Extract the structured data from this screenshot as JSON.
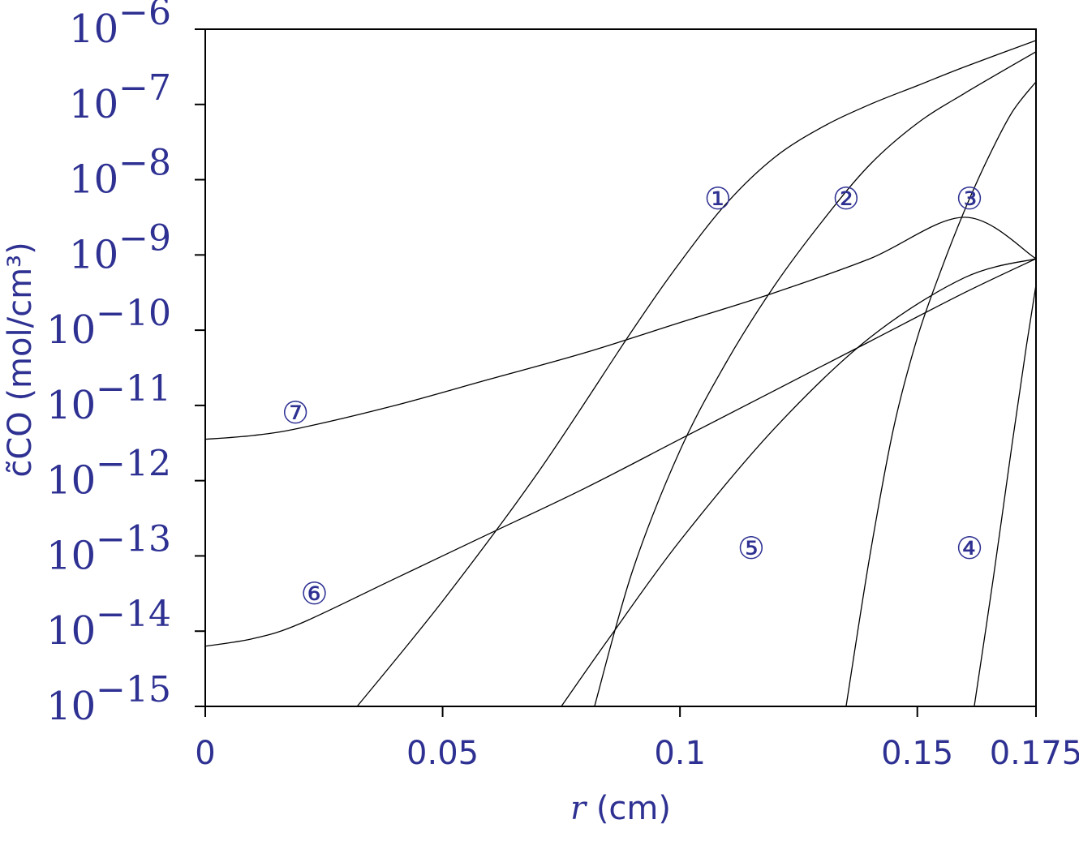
{
  "chart_data": {
    "type": "line",
    "title": "",
    "xlabel_var": "r",
    "xlabel_unit": "(cm)",
    "ylabel": "c̃CO (mol/cm³)",
    "x_scale": "linear",
    "y_scale": "log",
    "xlim": [
      0,
      0.175
    ],
    "ylim": [
      1e-15,
      1e-06
    ],
    "grid": false,
    "legend": "none",
    "x_ticks": [
      {
        "value": 0,
        "label": "0"
      },
      {
        "value": 0.05,
        "label": "0.05"
      },
      {
        "value": 0.1,
        "label": "0.1"
      },
      {
        "value": 0.15,
        "label": "0.15"
      },
      {
        "value": 0.175,
        "label": "0.175"
      }
    ],
    "y_ticks": [
      {
        "exp": -15,
        "base": "10",
        "sup": "−15"
      },
      {
        "exp": -14,
        "base": "10",
        "sup": "−14"
      },
      {
        "exp": -13,
        "base": "10",
        "sup": "−13"
      },
      {
        "exp": -12,
        "base": "10",
        "sup": "−12"
      },
      {
        "exp": -11,
        "base": "10",
        "sup": "−11"
      },
      {
        "exp": -10,
        "base": "10",
        "sup": "−10"
      },
      {
        "exp": -9,
        "base": "10",
        "sup": "−9"
      },
      {
        "exp": -8,
        "base": "10",
        "sup": "−8"
      },
      {
        "exp": -7,
        "base": "10",
        "sup": "−7"
      },
      {
        "exp": -6,
        "base": "10",
        "sup": "−6"
      }
    ],
    "series": [
      {
        "label": "①",
        "label_at": [
          0.108,
          -8.25
        ],
        "points": [
          [
            0.032,
            -15
          ],
          [
            0.05,
            -13.6
          ],
          [
            0.07,
            -11.9
          ],
          [
            0.09,
            -10.0
          ],
          [
            0.1,
            -9.1
          ],
          [
            0.11,
            -8.3
          ],
          [
            0.12,
            -7.7
          ],
          [
            0.13,
            -7.3
          ],
          [
            0.14,
            -7.0
          ],
          [
            0.15,
            -6.75
          ],
          [
            0.16,
            -6.5
          ],
          [
            0.175,
            -6.15
          ]
        ]
      },
      {
        "label": "②",
        "label_at": [
          0.135,
          -8.25
        ],
        "points": [
          [
            0.082,
            -15
          ],
          [
            0.09,
            -13.2
          ],
          [
            0.1,
            -11.6
          ],
          [
            0.11,
            -10.4
          ],
          [
            0.12,
            -9.4
          ],
          [
            0.13,
            -8.55
          ],
          [
            0.14,
            -7.8
          ],
          [
            0.15,
            -7.25
          ],
          [
            0.16,
            -6.85
          ],
          [
            0.175,
            -6.3
          ]
        ]
      },
      {
        "label": "③",
        "label_at": [
          0.161,
          -8.25
        ],
        "points": [
          [
            0.135,
            -15
          ],
          [
            0.14,
            -13.0
          ],
          [
            0.145,
            -11.3
          ],
          [
            0.15,
            -10.1
          ],
          [
            0.155,
            -9.2
          ],
          [
            0.16,
            -8.4
          ],
          [
            0.165,
            -7.7
          ],
          [
            0.17,
            -7.1
          ],
          [
            0.175,
            -6.7
          ]
        ]
      },
      {
        "label": "④",
        "label_at": [
          0.161,
          -12.9
        ],
        "points": [
          [
            0.162,
            -15
          ],
          [
            0.166,
            -13.3
          ],
          [
            0.17,
            -11.5
          ],
          [
            0.173,
            -10.2
          ],
          [
            0.175,
            -9.4
          ]
        ]
      },
      {
        "label": "⑤",
        "label_at": [
          0.115,
          -12.9
        ],
        "points": [
          [
            0.075,
            -15
          ],
          [
            0.085,
            -14.1
          ],
          [
            0.1,
            -12.8
          ],
          [
            0.12,
            -11.3
          ],
          [
            0.14,
            -10.1
          ],
          [
            0.16,
            -9.3
          ],
          [
            0.175,
            -9.05
          ]
        ]
      },
      {
        "label": "⑥",
        "label_at": [
          0.023,
          -13.5
        ],
        "points": [
          [
            0,
            -14.2
          ],
          [
            0.01,
            -14.1
          ],
          [
            0.02,
            -13.9
          ],
          [
            0.04,
            -13.3
          ],
          [
            0.06,
            -12.7
          ],
          [
            0.08,
            -12.1
          ],
          [
            0.1,
            -11.45
          ],
          [
            0.12,
            -10.8
          ],
          [
            0.14,
            -10.15
          ],
          [
            0.16,
            -9.5
          ],
          [
            0.175,
            -9.05
          ]
        ]
      },
      {
        "label": "⑦",
        "label_at": [
          0.019,
          -11.1
        ],
        "points": [
          [
            0,
            -11.45
          ],
          [
            0.01,
            -11.4
          ],
          [
            0.02,
            -11.3
          ],
          [
            0.04,
            -11.0
          ],
          [
            0.06,
            -10.65
          ],
          [
            0.08,
            -10.3
          ],
          [
            0.1,
            -9.9
          ],
          [
            0.12,
            -9.5
          ],
          [
            0.14,
            -9.05
          ],
          [
            0.16,
            -8.5
          ],
          [
            0.175,
            -9.05
          ]
        ]
      }
    ]
  }
}
